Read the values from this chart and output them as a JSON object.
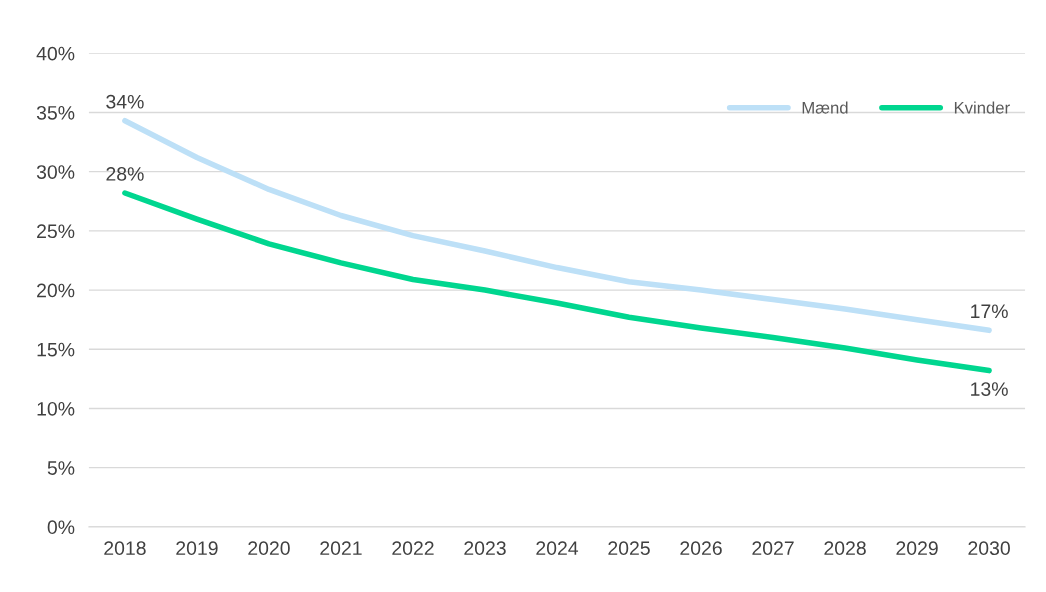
{
  "chart_data": {
    "type": "line",
    "categories": [
      "2018",
      "2019",
      "2020",
      "2021",
      "2022",
      "2023",
      "2024",
      "2025",
      "2026",
      "2027",
      "2028",
      "2029",
      "2030"
    ],
    "series": [
      {
        "name": "Mænd",
        "color": "#bde0f7",
        "values": [
          34.3,
          31.2,
          28.5,
          26.3,
          24.6,
          23.3,
          21.9,
          20.7,
          20.0,
          19.2,
          18.4,
          17.5,
          16.6
        ],
        "value_labels": [
          "34%",
          null,
          null,
          null,
          null,
          null,
          null,
          null,
          null,
          null,
          null,
          null,
          "17%"
        ]
      },
      {
        "name": "Kvinder",
        "color": "#00d68f",
        "values": [
          28.2,
          26.0,
          23.9,
          22.3,
          20.9,
          20.0,
          18.9,
          17.7,
          16.8,
          16.0,
          15.1,
          14.1,
          13.2
        ],
        "value_labels": [
          "28%",
          null,
          null,
          null,
          null,
          null,
          null,
          null,
          null,
          null,
          null,
          null,
          "13%"
        ]
      }
    ],
    "ylim": [
      0,
      40
    ],
    "yticks": [
      {
        "value": 0,
        "label": "0%"
      },
      {
        "value": 5,
        "label": "5%"
      },
      {
        "value": 10,
        "label": "10%"
      },
      {
        "value": 15,
        "label": "15%"
      },
      {
        "value": 20,
        "label": "20%"
      },
      {
        "value": 25,
        "label": "25%"
      },
      {
        "value": 30,
        "label": "30%"
      },
      {
        "value": 35,
        "label": "35%"
      },
      {
        "value": 40,
        "label": "40%"
      }
    ],
    "grid": "y",
    "legend": "top right",
    "marker": "none",
    "line_style": "solid"
  }
}
